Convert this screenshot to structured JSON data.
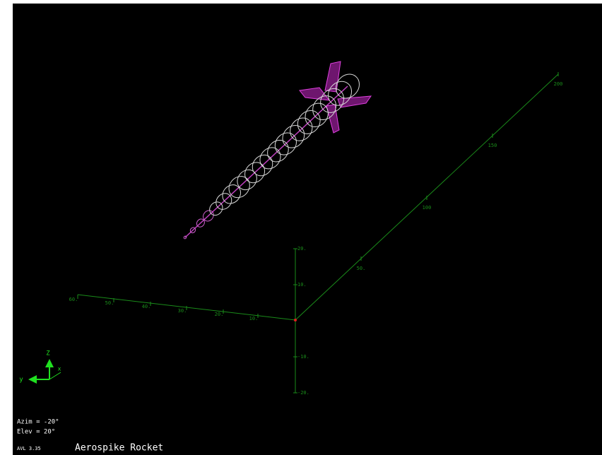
{
  "axes": {
    "y": {
      "labels": [
        "10.",
        "20.",
        "30.",
        "40.",
        "50.",
        "60."
      ]
    },
    "x": {
      "labels": [
        "50.",
        "100",
        "150",
        "200"
      ]
    },
    "z": {
      "labels": [
        "20.",
        "10.",
        "-10.",
        "-20."
      ]
    }
  },
  "triad": {
    "z": "Z",
    "y": "y",
    "x": "x"
  },
  "view": {
    "azimuth": "Azim = -20°",
    "elevation": "Elev = 20°"
  },
  "version": "AVL 3.35",
  "title": "Aerospike Rocket"
}
